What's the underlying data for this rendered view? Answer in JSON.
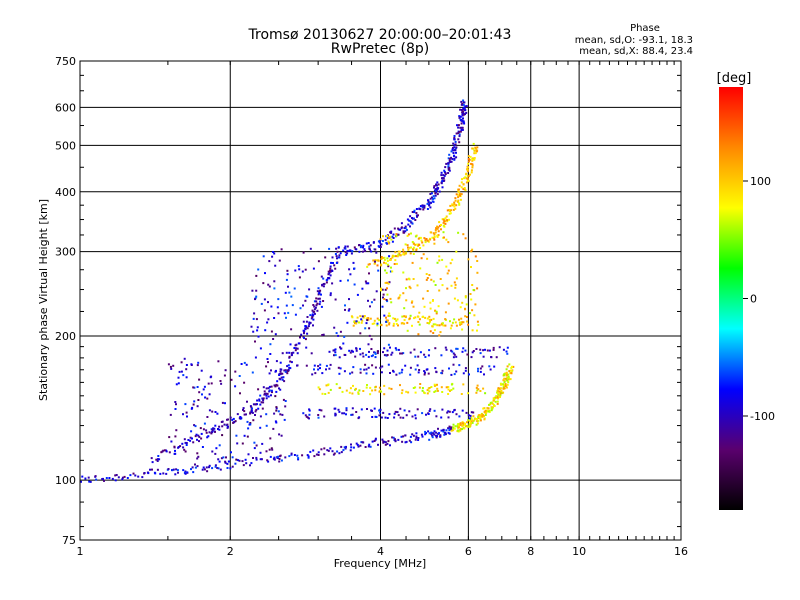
{
  "chart_data": {
    "type": "scatter",
    "title": "Tromsø 20130627 20:00:00–20:01:43",
    "subtitle": "RwPretec (8p)",
    "xlabel": "Frequency [MHz]",
    "ylabel": "Stationary phase Virtual Height [km]",
    "x_scale": "log2",
    "y_scale": "log",
    "xlim": [
      1,
      16
    ],
    "ylim": [
      75,
      750
    ],
    "x_ticks": [
      1,
      2,
      4,
      6,
      8,
      10,
      16
    ],
    "y_ticks": [
      75,
      100,
      200,
      300,
      400,
      500,
      600,
      750
    ],
    "grid": true,
    "stats": {
      "heading": "Phase",
      "line_o": "mean, sd,O: -93.1, 18.3",
      "line_x": "mean, sd,X:  88.4, 23.4"
    },
    "colorbar": {
      "label": "[deg]",
      "range": [
        -180,
        180
      ],
      "ticks": [
        100,
        0,
        -100
      ],
      "colors": [
        "#000000",
        "#5a006e",
        "#0000ff",
        "#00ffff",
        "#00ff00",
        "#ffff00",
        "#ff8800",
        "#ff0000"
      ]
    },
    "traces": [
      {
        "shape": "curve",
        "points": [
          [
            1.0,
            100
          ],
          [
            1.5,
            104
          ],
          [
            2.0,
            108
          ],
          [
            3.0,
            114
          ],
          [
            4.0,
            120
          ],
          [
            5.0,
            124
          ],
          [
            5.6,
            128
          ]
        ],
        "phase": -95
      },
      {
        "shape": "curve",
        "points": [
          [
            5.6,
            128
          ],
          [
            6.0,
            131
          ],
          [
            6.4,
            136
          ],
          [
            6.8,
            146
          ],
          [
            7.1,
            160
          ],
          [
            7.3,
            172
          ]
        ],
        "phase": 90
      },
      {
        "shape": "curve",
        "points": [
          [
            1.4,
            110
          ],
          [
            1.8,
            125
          ],
          [
            2.2,
            140
          ],
          [
            2.5,
            160
          ],
          [
            2.8,
            200
          ],
          [
            3.0,
            240
          ],
          [
            3.3,
            300
          ]
        ],
        "phase": -100
      },
      {
        "shape": "curve",
        "points": [
          [
            3.3,
            300
          ],
          [
            4.0,
            310
          ],
          [
            4.5,
            340
          ],
          [
            5.0,
            380
          ],
          [
            5.3,
            420
          ],
          [
            5.6,
            480
          ],
          [
            5.8,
            560
          ],
          [
            5.9,
            620
          ]
        ],
        "phase": -95
      },
      {
        "shape": "curve",
        "points": [
          [
            3.8,
            280
          ],
          [
            4.5,
            300
          ],
          [
            5.2,
            330
          ],
          [
            5.7,
            380
          ],
          [
            6.0,
            440
          ],
          [
            6.2,
            500
          ]
        ],
        "phase": 100
      },
      {
        "shape": "band",
        "y": 170,
        "x": [
          2.4,
          6.8
        ],
        "phase": -95
      },
      {
        "shape": "band",
        "y": 155,
        "x": [
          3.0,
          6.5
        ],
        "phase": 90
      },
      {
        "shape": "band",
        "y": 185,
        "x": [
          3.2,
          7.2
        ],
        "phase": -95
      },
      {
        "shape": "band",
        "y": 138,
        "x": [
          2.8,
          6.3
        ],
        "phase": -95
      },
      {
        "shape": "band",
        "y": 215,
        "x": [
          3.5,
          6.0
        ],
        "phase": 95
      },
      {
        "shape": "cloud",
        "x": [
          2.2,
          4.2
        ],
        "y": [
          180,
          310
        ],
        "phase": -95
      },
      {
        "shape": "cloud",
        "x": [
          4.0,
          6.3
        ],
        "y": [
          200,
          330
        ],
        "phase": 95
      },
      {
        "shape": "cloud",
        "x": [
          1.5,
          2.6
        ],
        "y": [
          110,
          180
        ],
        "phase": -100
      }
    ]
  }
}
